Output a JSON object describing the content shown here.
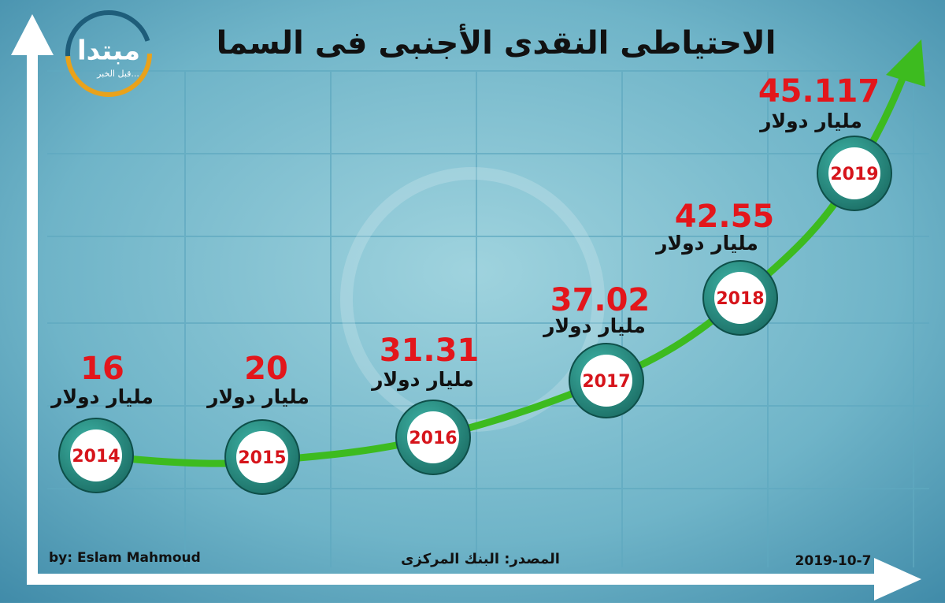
{
  "title": "الاحتياطى النقدى الأجنبى فى السما",
  "logo": {
    "name": "مبتدا",
    "tagline": "قبل الخبر..."
  },
  "points": [
    {
      "year": "2014",
      "value": 16,
      "unit": "مليار دولار"
    },
    {
      "year": "2015",
      "value": 20,
      "unit": "مليار دولار"
    },
    {
      "year": "2016",
      "value": 31.31,
      "unit": "مليار دولار"
    },
    {
      "year": "2017",
      "value": 37.02,
      "unit": "مليار دولار"
    },
    {
      "year": "2018",
      "value": 42.55,
      "unit": "مليار دولار"
    },
    {
      "year": "2019",
      "value": 45.117,
      "unit": "مليار دولار"
    }
  ],
  "credit": "by: Eslam Mahmoud",
  "source": "المصدر: البنك المركزى",
  "date": "2019-10-7"
}
